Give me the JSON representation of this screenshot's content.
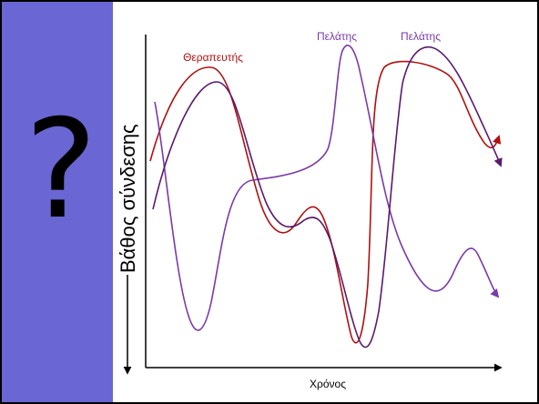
{
  "question_mark": "?",
  "y_axis_label": "Βάθος σύνδεσης",
  "x_axis_label": "Χρόνος",
  "colors": {
    "side_band": "#6a66d4",
    "therapist": "#b01010",
    "client_dark": "#5a1a6e",
    "client_light": "#7a3aaa"
  },
  "curves": [
    {
      "id": "therapist",
      "label": "Θεραπευτής",
      "color": "#b01010"
    },
    {
      "id": "client-1",
      "label": "Πελάτης",
      "color": "#7a3aaa"
    },
    {
      "id": "client-2",
      "label": "Πελάτης",
      "color": "#5a1a6e"
    }
  ]
}
